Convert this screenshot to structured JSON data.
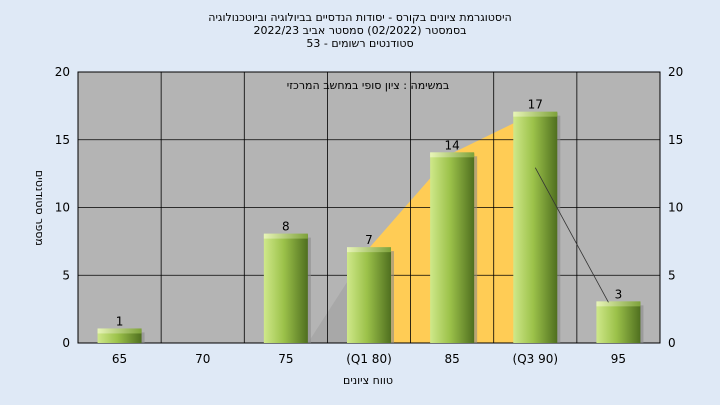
{
  "chart_data": {
    "type": "bar",
    "title_lines": [
      "היסטוגרמת ציונים בקורס - יסודות הנדסיים בביולוגיה וביוטכנולוגיה",
      "בסמסטר  (02/2022)  סמסטר אביב 2022/23",
      "סטודנטים רשומים - 53"
    ],
    "annotation": "במשימה : ציון סופי במחשב המרכזי",
    "xlabel": "טווח ציונים",
    "ylabel": "מספר סטודנטים",
    "categories": [
      "65",
      "70",
      "75",
      "(Q1 80)",
      "85",
      "(Q3 90)",
      "95"
    ],
    "values": [
      1,
      0,
      8,
      7,
      14,
      17,
      3
    ],
    "value_labels": [
      "1",
      "",
      "8",
      "7",
      "14",
      "17",
      "3"
    ],
    "ylim": [
      0,
      20
    ],
    "yticks": [
      0,
      5,
      10,
      15,
      20
    ],
    "grid": true,
    "colors": {
      "plot_bg": "#b4b4b4",
      "bar_light": "#cfe88a",
      "bar_mid": "#9cc24a",
      "bar_dark": "#4f6f1f",
      "iqr_band": "#ffcc55",
      "grid": "#000000"
    }
  }
}
